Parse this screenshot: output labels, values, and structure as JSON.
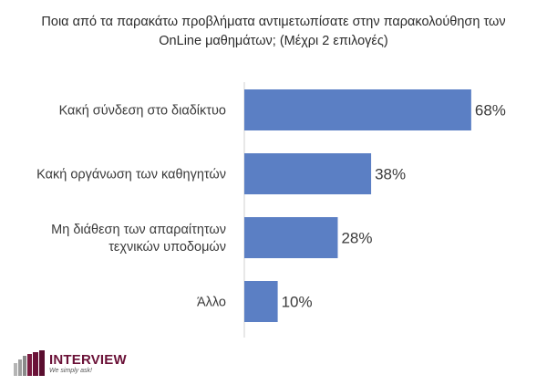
{
  "title_lines": [
    "Ποια από τα παρακάτω προβλήματα αντιμετωπίσατε στην παρακολούθηση των",
    "OnLine μαθημάτων; (Μέχρι 2 επιλογές)"
  ],
  "chart_data": {
    "type": "bar",
    "orientation": "horizontal",
    "categories": [
      [
        "Κακή σύνδεση στο διαδίκτυο"
      ],
      [
        "Κακή οργάνωση των καθηγητών"
      ],
      [
        "Μη διάθεση των απαραίτητων",
        "τεχνικών υποδομών"
      ],
      [
        "Άλλο"
      ]
    ],
    "values": [
      68,
      38,
      28,
      10
    ],
    "value_labels": [
      "68%",
      "38%",
      "28%",
      "10%"
    ],
    "xlim": [
      0,
      100
    ],
    "bar_color": "#5b7fc4",
    "axis_color": "#d0d0d0",
    "grid": false,
    "legend": "none"
  },
  "brand": {
    "name": "INTERVIEW",
    "tagline": "We simply ask!",
    "color": "#6b1238"
  }
}
